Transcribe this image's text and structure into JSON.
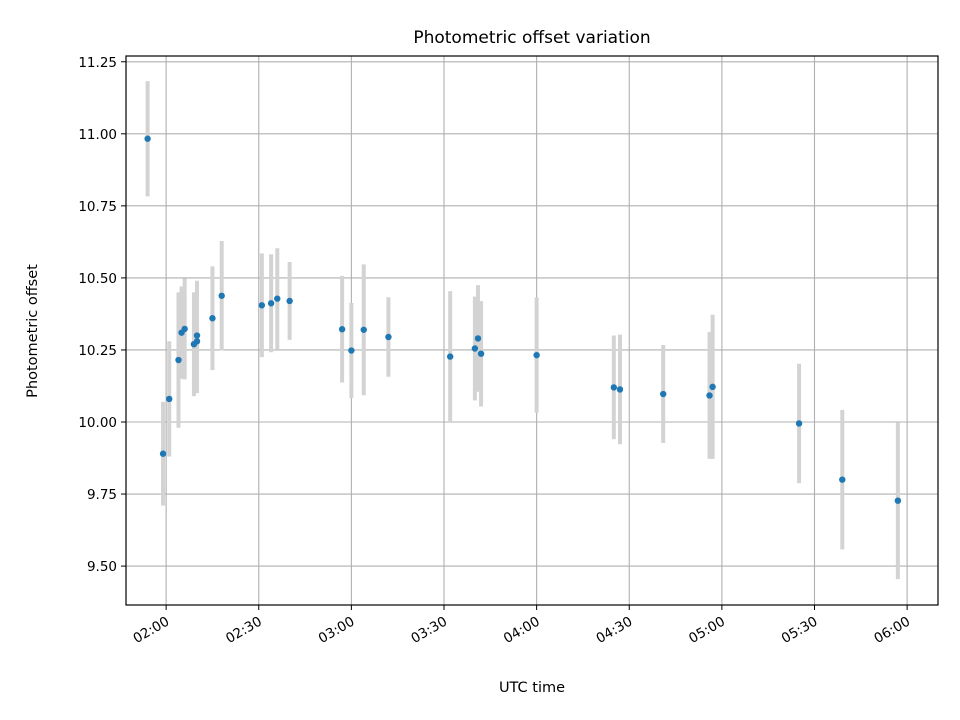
{
  "chart_data": {
    "type": "scatter",
    "title": "Photometric offset variation",
    "xlabel": "UTC time",
    "ylabel": "Photometric offset",
    "x_unit": "UTC time (HH:MM)",
    "xlim": [
      "01:47",
      "06:10"
    ],
    "ylim": [
      9.365,
      11.27
    ],
    "x_ticks": [
      "02:00",
      "02:30",
      "03:00",
      "03:30",
      "04:00",
      "04:30",
      "05:00",
      "05:30",
      "06:00"
    ],
    "y_ticks": [
      "9.50",
      "9.75",
      "10.00",
      "10.25",
      "10.50",
      "10.75",
      "11.00",
      "11.25"
    ],
    "grid": true,
    "point_color": "#1f77b4",
    "errorbar_color": "#d3d3d3",
    "points": [
      {
        "x": "01:54",
        "y": 10.983,
        "err": 0.2
      },
      {
        "x": "01:59",
        "y": 9.89,
        "err": 0.18
      },
      {
        "x": "02:01",
        "y": 10.08,
        "err": 0.2
      },
      {
        "x": "02:04",
        "y": 10.215,
        "err": 0.235
      },
      {
        "x": "02:05",
        "y": 10.31,
        "err": 0.16
      },
      {
        "x": "02:06",
        "y": 10.323,
        "err": 0.175
      },
      {
        "x": "02:09",
        "y": 10.27,
        "err": 0.18
      },
      {
        "x": "02:10",
        "y": 10.28,
        "err": 0.18
      },
      {
        "x": "02:10",
        "y": 10.3,
        "err": 0.19
      },
      {
        "x": "02:15",
        "y": 10.36,
        "err": 0.18
      },
      {
        "x": "02:18",
        "y": 10.438,
        "err": 0.19
      },
      {
        "x": "02:31",
        "y": 10.405,
        "err": 0.18
      },
      {
        "x": "02:34",
        "y": 10.412,
        "err": 0.17
      },
      {
        "x": "02:36",
        "y": 10.428,
        "err": 0.175
      },
      {
        "x": "02:40",
        "y": 10.42,
        "err": 0.135
      },
      {
        "x": "02:57",
        "y": 10.322,
        "err": 0.185
      },
      {
        "x": "03:00",
        "y": 10.248,
        "err": 0.165
      },
      {
        "x": "03:04",
        "y": 10.32,
        "err": 0.227
      },
      {
        "x": "03:12",
        "y": 10.295,
        "err": 0.138
      },
      {
        "x": "03:32",
        "y": 10.227,
        "err": 0.227
      },
      {
        "x": "03:40",
        "y": 10.255,
        "err": 0.18
      },
      {
        "x": "03:41",
        "y": 10.29,
        "err": 0.185
      },
      {
        "x": "03:42",
        "y": 10.237,
        "err": 0.183
      },
      {
        "x": "04:00",
        "y": 10.232,
        "err": 0.2
      },
      {
        "x": "04:25",
        "y": 10.12,
        "err": 0.18
      },
      {
        "x": "04:27",
        "y": 10.113,
        "err": 0.19
      },
      {
        "x": "04:41",
        "y": 10.097,
        "err": 0.17
      },
      {
        "x": "04:56",
        "y": 10.092,
        "err": 0.22
      },
      {
        "x": "04:57",
        "y": 10.122,
        "err": 0.25
      },
      {
        "x": "05:25",
        "y": 9.995,
        "err": 0.207
      },
      {
        "x": "05:39",
        "y": 9.8,
        "err": 0.242
      },
      {
        "x": "05:57",
        "y": 9.727,
        "err": 0.272
      }
    ]
  }
}
